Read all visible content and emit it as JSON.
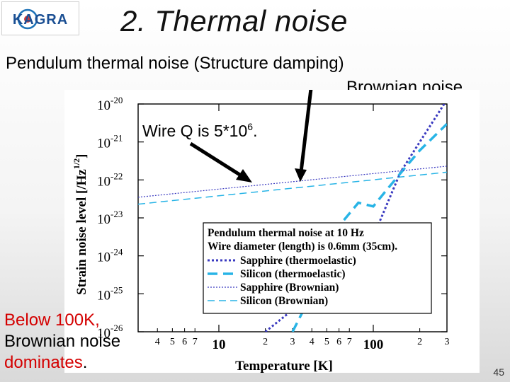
{
  "slide": {
    "logo_text": "KAGRA",
    "title": "2. Thermal noise",
    "subtitle": "Pendulum thermal noise (Structure damping)",
    "right_note": "Brownian noise",
    "wire_q_prefix": "Wire Q is 5*10",
    "wire_q_exp": "6",
    "wire_q_suffix": ".",
    "below_red": "Below 100K,",
    "below_line2": "Brownian noise",
    "below_line3": "dominates",
    "below_dot": ".",
    "page_number": "45"
  },
  "colors": {
    "sapphire": "#3a3ac0",
    "silicon": "#28b4e6",
    "arrow": "#000000"
  },
  "chart_data": {
    "type": "line",
    "xscale": "log",
    "yscale": "log",
    "xlim": [
      3,
      300
    ],
    "ylim": [
      1e-26,
      1e-20
    ],
    "xlabel": "Temperature [K]",
    "ylabel": "Strain noise level [/Hz",
    "ylabel_exp": "1/2",
    "ylabel_close": "]",
    "ytick_base": "10",
    "yticks": [
      {
        "value": 1e-20,
        "exp": "-20"
      },
      {
        "value": 1e-21,
        "exp": "-21"
      },
      {
        "value": 1e-22,
        "exp": "-22"
      },
      {
        "value": 1e-23,
        "exp": "-23"
      },
      {
        "value": 1e-24,
        "exp": "-24"
      },
      {
        "value": 1e-25,
        "exp": "-25"
      },
      {
        "value": 1e-26,
        "exp": "-26"
      }
    ],
    "xticks_major": [
      {
        "value": 10,
        "label": "10"
      },
      {
        "value": 100,
        "label": "100"
      }
    ],
    "xticks_minor": [
      {
        "value": 4,
        "label": "4"
      },
      {
        "value": 5,
        "label": "5"
      },
      {
        "value": 6,
        "label": "6"
      },
      {
        "value": 7,
        "label": "7"
      },
      {
        "value": 20,
        "label": "2"
      },
      {
        "value": 30,
        "label": "3"
      },
      {
        "value": 40,
        "label": "4"
      },
      {
        "value": 50,
        "label": "5"
      },
      {
        "value": 60,
        "label": "6"
      },
      {
        "value": 70,
        "label": "7"
      },
      {
        "value": 200,
        "label": "2"
      },
      {
        "value": 300,
        "label": "3"
      }
    ],
    "legend": {
      "title_line1": "Pendulum thermal noise at 10 Hz",
      "title_line2": "Wire diameter (length) is 0.6mm (35cm).",
      "placement": "bottom-right"
    },
    "series": [
      {
        "name": "Sapphire (thermoelastic)",
        "style": "dotted-thick",
        "color": "#3a3ac0",
        "x": [
          20,
          50,
          100,
          150,
          200,
          300
        ],
        "y": [
          1e-26,
          2e-25,
          3.2e-24,
          1.6e-22,
          1e-21,
          1.3e-20
        ]
      },
      {
        "name": "Silicon (thermoelastic)",
        "style": "dashed-thick",
        "color": "#28b4e6",
        "x": [
          30,
          40,
          50,
          80,
          100,
          120,
          150,
          200,
          300
        ],
        "y": [
          1e-26,
          1e-25,
          2.5e-24,
          2.5e-23,
          2e-23,
          5e-23,
          1.5e-22,
          6e-22,
          3e-21
        ]
      },
      {
        "name": "Sapphire (Brownian)",
        "style": "dotted-thin",
        "color": "#3a3ac0",
        "x": [
          3,
          300
        ],
        "y": [
          3.5e-23,
          2.3e-22
        ]
      },
      {
        "name": "Silicon (Brownian)",
        "style": "dashed-thin",
        "color": "#28b4e6",
        "x": [
          3,
          300
        ],
        "y": [
          2.3e-23,
          1.6e-22
        ]
      }
    ]
  }
}
